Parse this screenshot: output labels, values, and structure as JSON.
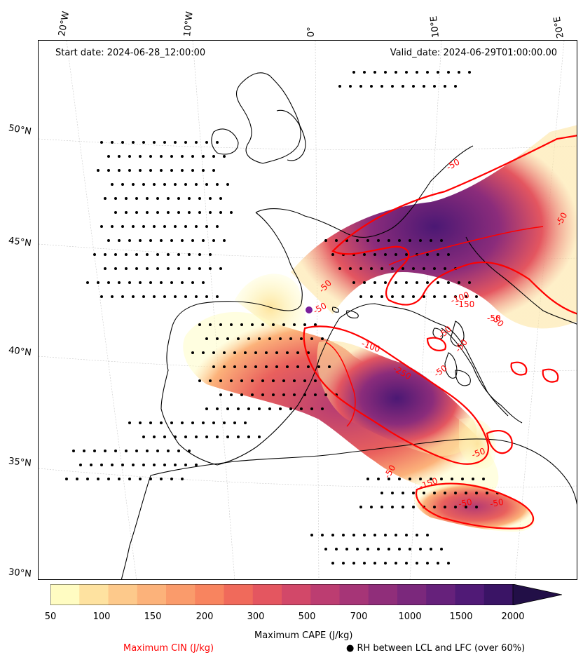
{
  "header": {
    "start_date": "Start date: 2024-06-28_12:00:00",
    "valid_date": "Valid_date: 2024-06-29T01:00:00.00"
  },
  "longitude_labels": [
    "20°W",
    "10°W",
    "0°",
    "10°E",
    "20°E"
  ],
  "latitude_labels": [
    "50°N",
    "45°N",
    "40°N",
    "35°N",
    "30°N"
  ],
  "colorbar": {
    "title": "Maximum CAPE (J/kg)",
    "ticks": [
      "50",
      "100",
      "150",
      "200",
      "300",
      "500",
      "700",
      "1000",
      "1500",
      "2000"
    ],
    "colors": [
      "#fffcc2",
      "#fee2a0",
      "#fdc98b",
      "#fcb27a",
      "#fa9b6b",
      "#f8845f",
      "#f06a5b",
      "#e45660",
      "#d24869",
      "#bc3d71",
      "#a63577",
      "#902e7a",
      "#7b287c",
      "#66217b",
      "#501a76",
      "#3a1465",
      "#220f47"
    ]
  },
  "legend": {
    "cin": "Maximum CIN (J/kg)",
    "cin_color": "#ff0000",
    "rh": "RH between LCL and LFC (over 60%)",
    "rh_marker": "●"
  },
  "contour_labels": [
    "-50",
    "-50",
    "-50",
    "-150",
    "-50",
    "-100",
    "-50",
    "-250",
    "-50",
    "-100",
    "-50",
    "-150",
    "-50",
    "-50",
    "-50",
    "-50",
    "-50",
    "-50"
  ]
}
